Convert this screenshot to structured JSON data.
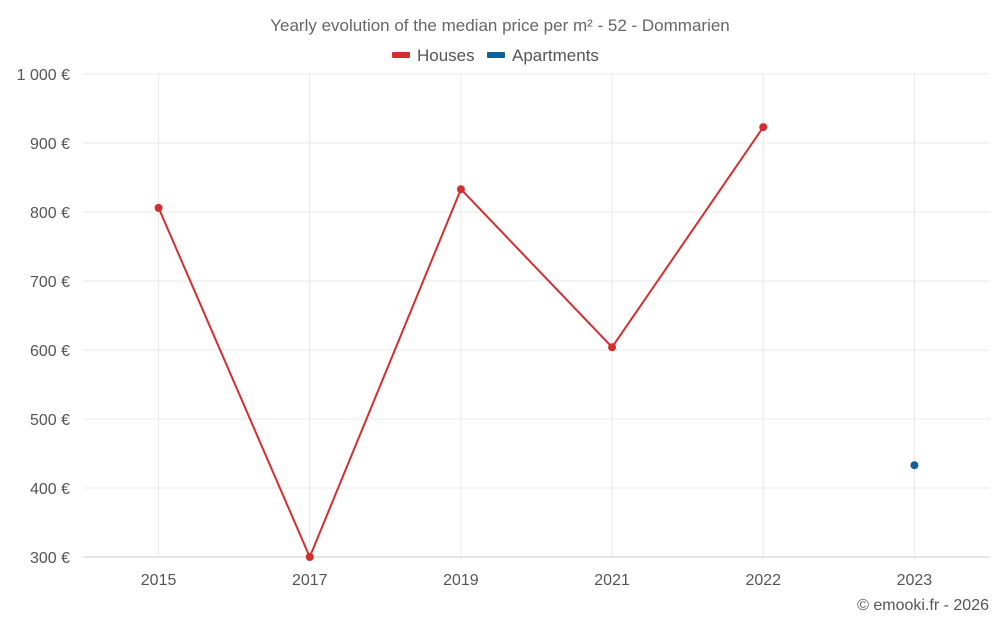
{
  "chart_data": {
    "type": "line",
    "title": "Yearly evolution of the median price per m² - 52 - Dommarien",
    "categories": [
      "2015",
      "2017",
      "2019",
      "2021",
      "2022",
      "2023"
    ],
    "series": [
      {
        "name": "Houses",
        "color": "#d32f2f",
        "values": [
          806,
          300,
          833,
          604,
          923,
          null
        ]
      },
      {
        "name": "Apartments",
        "color": "#0d6199",
        "values": [
          null,
          null,
          null,
          null,
          null,
          433
        ]
      }
    ],
    "ylim": [
      300,
      1000
    ],
    "yticks": [
      300,
      400,
      500,
      600,
      700,
      800,
      900,
      1000
    ],
    "ytick_labels": [
      "300 €",
      "400 €",
      "500 €",
      "600 €",
      "700 €",
      "800 €",
      "900 €",
      "1 000 €"
    ],
    "xlabel": "",
    "ylabel": "",
    "legend_position": "top-center",
    "grid": true
  },
  "credit": "© emooki.fr - 2026"
}
